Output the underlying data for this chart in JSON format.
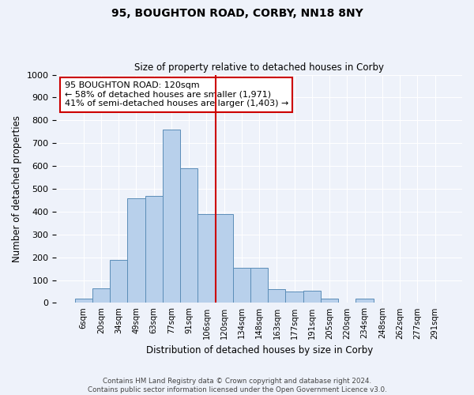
{
  "title1": "95, BOUGHTON ROAD, CORBY, NN18 8NY",
  "title2": "Size of property relative to detached houses in Corby",
  "xlabel": "Distribution of detached houses by size in Corby",
  "ylabel": "Number of detached properties",
  "categories": [
    "6sqm",
    "20sqm",
    "34sqm",
    "49sqm",
    "63sqm",
    "77sqm",
    "91sqm",
    "106sqm",
    "120sqm",
    "134sqm",
    "148sqm",
    "163sqm",
    "177sqm",
    "191sqm",
    "205sqm",
    "220sqm",
    "234sqm",
    "248sqm",
    "262sqm",
    "277sqm",
    "291sqm"
  ],
  "values": [
    20,
    65,
    190,
    460,
    470,
    760,
    590,
    390,
    390,
    155,
    155,
    60,
    50,
    55,
    20,
    0,
    20,
    0,
    0,
    0,
    0
  ],
  "bar_color": "#b8d0eb",
  "bar_edge_color": "#5b8db8",
  "vline_color": "#cc0000",
  "annotation_text": "95 BOUGHTON ROAD: 120sqm\n← 58% of detached houses are smaller (1,971)\n41% of semi-detached houses are larger (1,403) →",
  "annotation_box_color": "#ffffff",
  "annotation_box_edge": "#cc0000",
  "ylim": [
    0,
    1000
  ],
  "yticks": [
    0,
    100,
    200,
    300,
    400,
    500,
    600,
    700,
    800,
    900,
    1000
  ],
  "footer1": "Contains HM Land Registry data © Crown copyright and database right 2024.",
  "footer2": "Contains public sector information licensed under the Open Government Licence v3.0.",
  "bg_color": "#eef2fa",
  "grid_color": "#ffffff"
}
